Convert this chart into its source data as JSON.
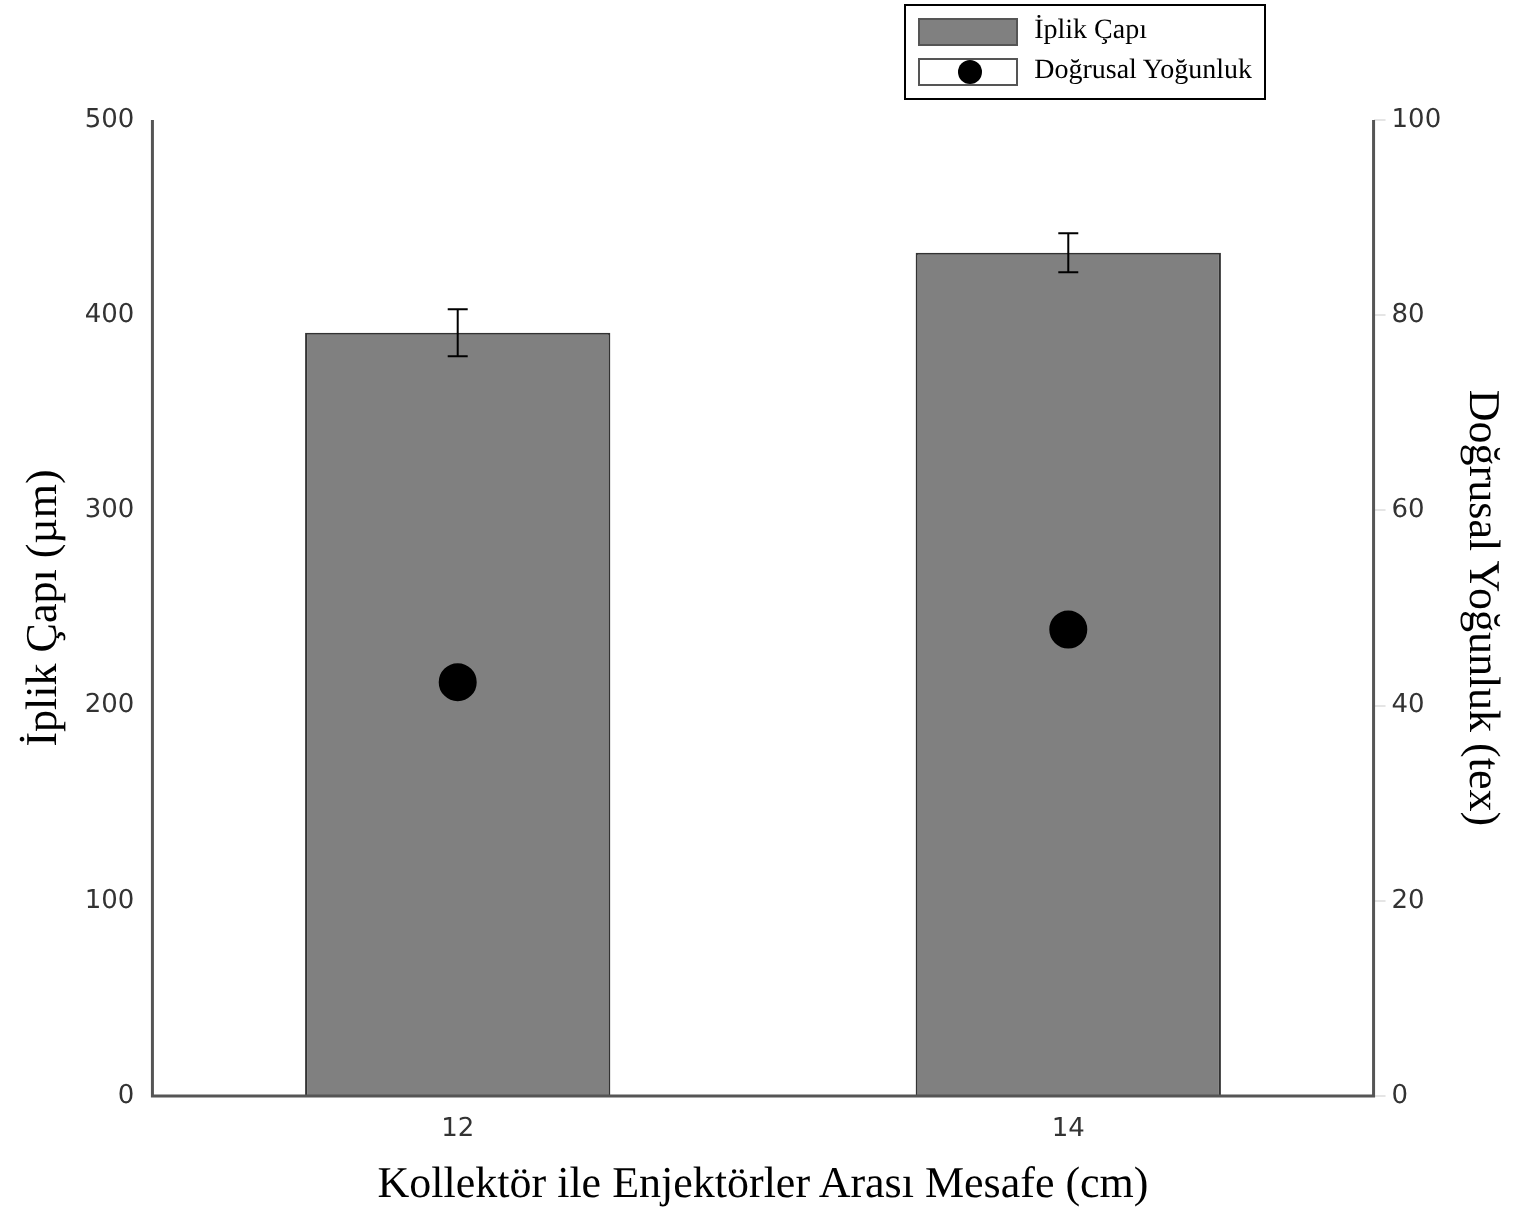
{
  "chart_data": {
    "type": "bar",
    "xlabel": "Kollektör ile Enjektörler Arası Mesafe (cm)",
    "ylabel": "İplik Çapı (µm)",
    "y2label": "Doğrusal Yoğunluk (tex)",
    "categories": [
      "12",
      "14"
    ],
    "series": [
      {
        "name": "İplik Çapı",
        "color": "#808080",
        "values": [
          391,
          432
        ],
        "errors": [
          12,
          10
        ]
      },
      {
        "name": "Doğrusal Yoğunluk",
        "type": "scatter",
        "axis": "y2",
        "color": "#000000",
        "values": [
          42.4,
          47.8
        ]
      }
    ],
    "ylim": [
      0,
      500
    ],
    "yticks": [
      0,
      100,
      200,
      300,
      400,
      500
    ],
    "y2lim": [
      0,
      100
    ],
    "y2ticks": [
      0,
      20,
      40,
      60,
      80,
      100
    ],
    "grid": false,
    "legend": "top right",
    "marker": "circle"
  }
}
